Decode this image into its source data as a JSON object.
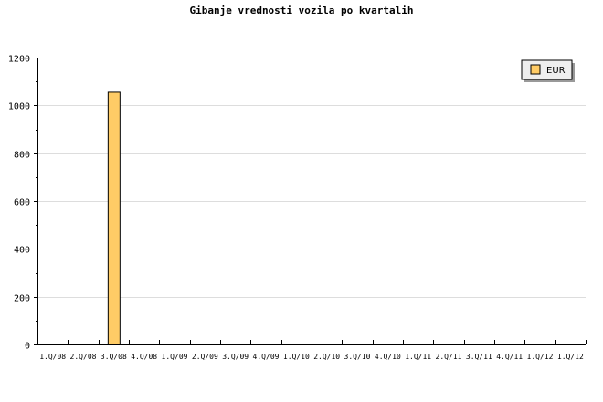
{
  "chart_data": {
    "type": "bar",
    "title": "Gibanje vrednosti vozila po kvartalih",
    "xlabel": "",
    "ylabel": "",
    "categories": [
      "1.Q/08",
      "2.Q/08",
      "3.Q/08",
      "4.Q/08",
      "1.Q/09",
      "2.Q/09",
      "3.Q/09",
      "4.Q/09",
      "1.Q/10",
      "2.Q/10",
      "3.Q/10",
      "4.Q/10",
      "1.Q/11",
      "2.Q/11",
      "3.Q/11",
      "4.Q/11",
      "1.Q/12",
      "1.Q/12"
    ],
    "series": [
      {
        "name": "EUR",
        "color": "#ffcc66",
        "values": [
          0,
          0,
          1055,
          0,
          0,
          0,
          0,
          0,
          0,
          0,
          0,
          0,
          0,
          0,
          0,
          0,
          0,
          0
        ]
      }
    ],
    "ylim": [
      0,
      1200
    ],
    "yticks": [
      0,
      200,
      400,
      600,
      800,
      1000,
      1200
    ],
    "grid": true,
    "legend": "top-right"
  }
}
